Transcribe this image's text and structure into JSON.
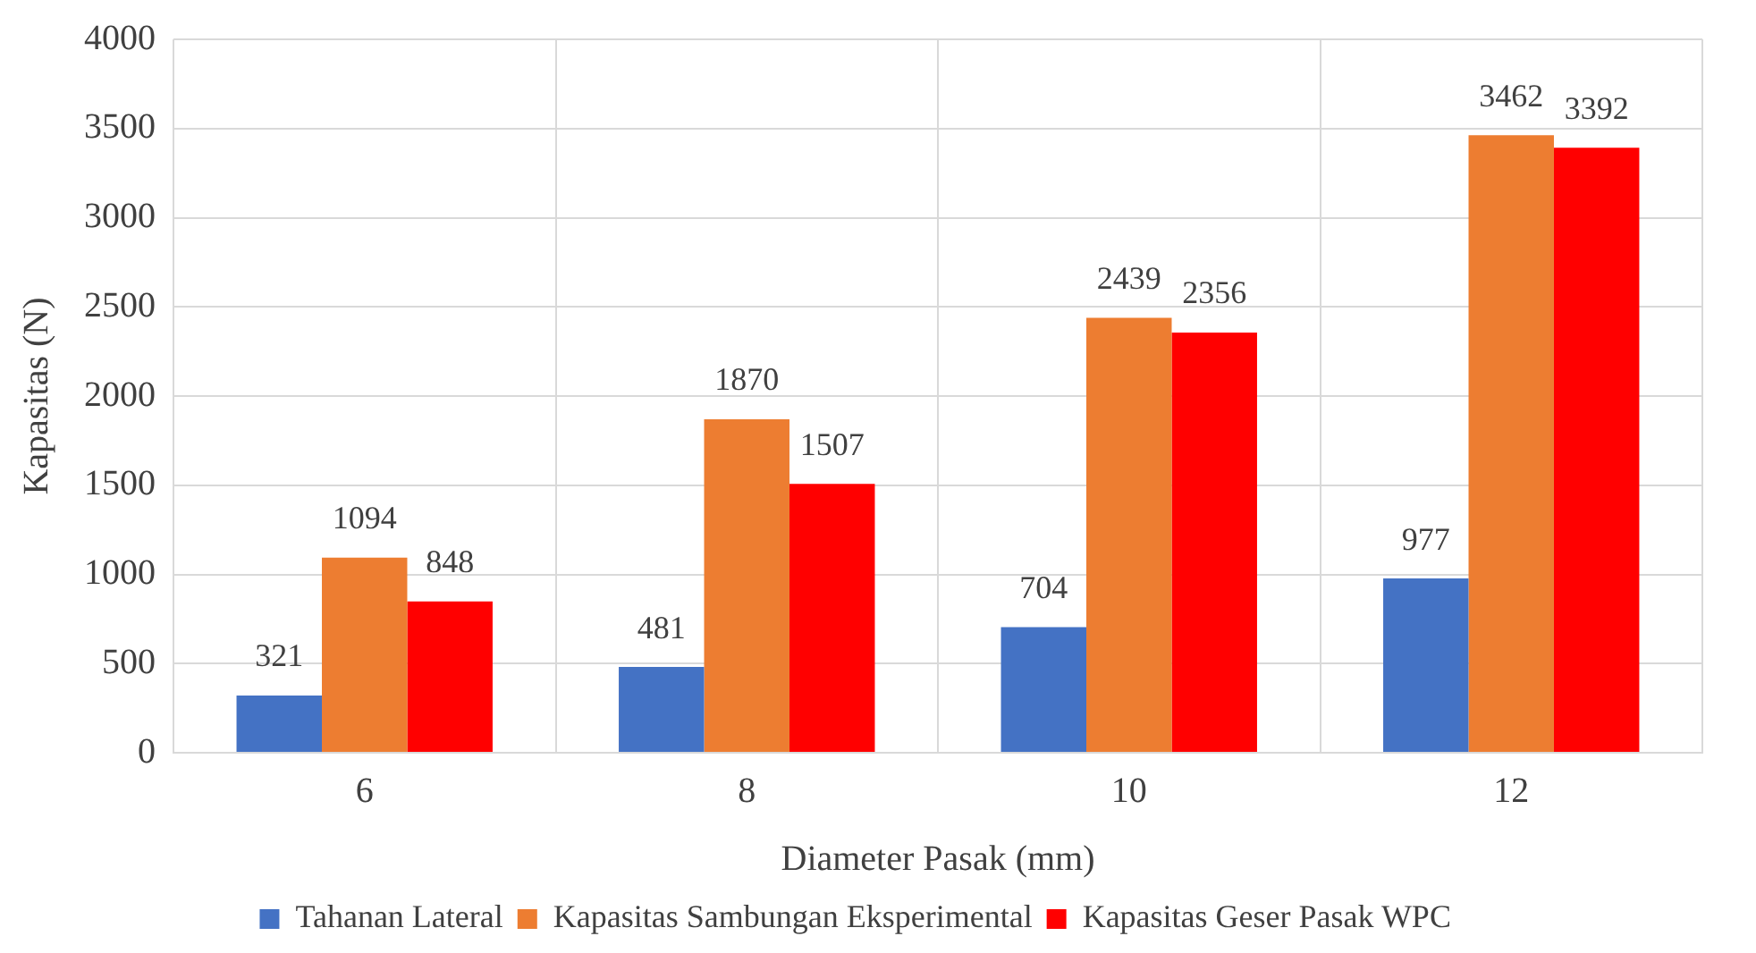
{
  "chart_data": {
    "type": "bar",
    "xlabel": "Diameter Pasak (mm)",
    "ylabel": "Kapasitas (N)",
    "categories": [
      "6",
      "8",
      "10",
      "12"
    ],
    "series": [
      {
        "name": "Tahanan Lateral",
        "color": "#4472c4",
        "values": [
          321,
          481,
          704,
          977
        ]
      },
      {
        "name": "Kapasitas Sambungan Eksperimental",
        "color": "#ed7d31",
        "values": [
          1094,
          1870,
          2439,
          3462
        ]
      },
      {
        "name": "Kapasitas Geser Pasak WPC",
        "color": "#ff0000",
        "values": [
          848,
          1507,
          2356,
          3392
        ]
      }
    ],
    "ylim": [
      0,
      4000
    ],
    "yticks": [
      0,
      500,
      1000,
      1500,
      2000,
      2500,
      3000,
      3500,
      4000
    ],
    "grid": true,
    "legend": "bottom",
    "data_labels": true
  }
}
